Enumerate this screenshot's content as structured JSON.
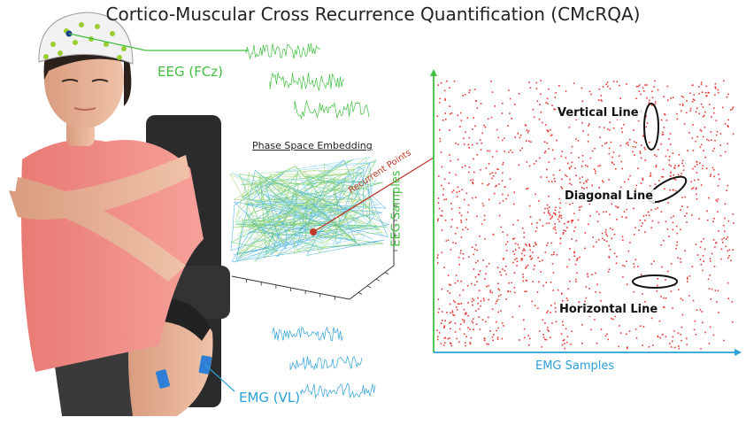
{
  "title": "Cortico-Muscular Cross Recurrence Quantification (CMcRQA)",
  "labels": {
    "eeg_channel": "EEG (FCz)",
    "emg_channel": "EMG (VL)",
    "phase_space": "Phase Space Embedding",
    "recurrent_points": "Recurrent Points",
    "vertical_line": "Vertical Line",
    "diagonal_line": "Diagonal Line",
    "horizontal_line": "Horizontal Line",
    "y_axis": "EEG Samples",
    "x_axis": "EMG Samples"
  },
  "colors": {
    "eeg": "#3fbf3f",
    "emg": "#2aa0d8",
    "recurrence": "#e53935",
    "annotation": "#111111",
    "shirt": "#f08a84",
    "skin": "#e8b79b"
  },
  "icons": {
    "subject": "person-seated-with-eeg-cap-icon",
    "eeg_electrode": "eeg-cap-icon",
    "emg_electrode": "emg-sensor-icon"
  }
}
